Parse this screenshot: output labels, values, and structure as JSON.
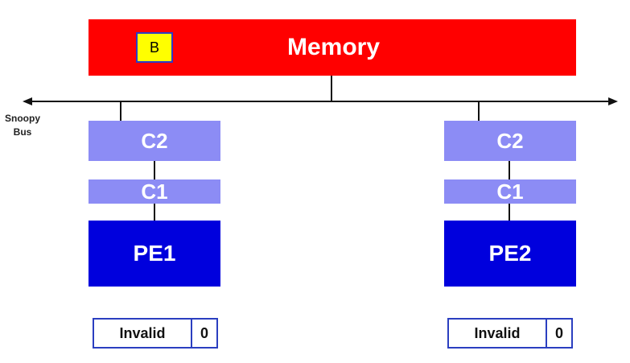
{
  "memory": {
    "label": "Memory",
    "block": "B"
  },
  "bus": {
    "label_line1": "Snoopy",
    "label_line2": "Bus"
  },
  "nodes": [
    {
      "c2": "C2",
      "c1": "C1",
      "pe": "PE1",
      "state": "Invalid",
      "count": "0"
    },
    {
      "c2": "C2",
      "c1": "C1",
      "pe": "PE2",
      "state": "Invalid",
      "count": "0"
    }
  ],
  "colors": {
    "memory": "#ff0000",
    "block": "#ffff00",
    "cache": "#8c8cf5",
    "processor": "#0000dd",
    "state_border": "#2b3fc0"
  }
}
